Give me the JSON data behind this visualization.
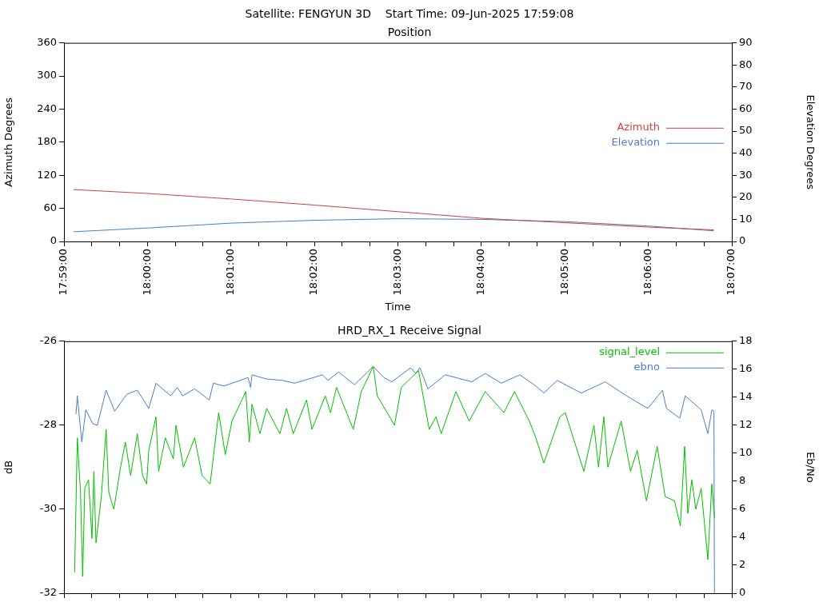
{
  "chart_data": [
    {
      "type": "line",
      "title": "Satellite: FENGYUN 3D    Start Time: 09-Jun-2025 17:59:08",
      "subtitle": "Position",
      "xlabel": "Time",
      "ylabel": "Azimuth Degrees",
      "y2label": "Elevation Degrees",
      "xlim": [
        17.98333,
        18.11667
      ],
      "xticks": [
        {
          "value": 17.98333,
          "label": "17:59:00"
        },
        {
          "value": 17.98889,
          "label": null
        },
        {
          "value": 17.99444,
          "label": null
        },
        {
          "value": 18.0,
          "label": "18:00:00"
        },
        {
          "value": 18.00556,
          "label": null
        },
        {
          "value": 18.01111,
          "label": null
        },
        {
          "value": 18.01667,
          "label": "18:01:00"
        },
        {
          "value": 18.02222,
          "label": null
        },
        {
          "value": 18.02778,
          "label": null
        },
        {
          "value": 18.03333,
          "label": "18:02:00"
        },
        {
          "value": 18.03889,
          "label": null
        },
        {
          "value": 18.04444,
          "label": null
        },
        {
          "value": 18.05,
          "label": "18:03:00"
        },
        {
          "value": 18.05556,
          "label": null
        },
        {
          "value": 18.06111,
          "label": null
        },
        {
          "value": 18.06667,
          "label": "18:04:00"
        },
        {
          "value": 18.07222,
          "label": null
        },
        {
          "value": 18.07778,
          "label": null
        },
        {
          "value": 18.08333,
          "label": "18:05:00"
        },
        {
          "value": 18.08889,
          "label": null
        },
        {
          "value": 18.09444,
          "label": null
        },
        {
          "value": 18.1,
          "label": "18:06:00"
        },
        {
          "value": 18.10556,
          "label": null
        },
        {
          "value": 18.11111,
          "label": null
        },
        {
          "value": 18.11667,
          "label": "18:07:00"
        }
      ],
      "ylim": [
        0,
        360
      ],
      "yticks": [
        0,
        60,
        120,
        180,
        240,
        300,
        360
      ],
      "y2lim": [
        0,
        90
      ],
      "y2ticks": [
        0,
        10,
        20,
        30,
        40,
        50,
        60,
        70,
        80,
        90
      ],
      "legend": "right",
      "series": [
        {
          "name": "Azimuth",
          "color": "#d04040",
          "x": [
            17.98528,
            18.0,
            18.01667,
            18.03333,
            18.05,
            18.06667,
            18.08333,
            18.1,
            18.11306
          ],
          "values": [
            94,
            87,
            77,
            66,
            54,
            42,
            34,
            26,
            21
          ]
        },
        {
          "name": "Elevation",
          "color": "#4a7ec8",
          "axis": "y2",
          "x": [
            17.98528,
            18.0,
            18.01667,
            18.03333,
            18.05,
            18.06667,
            18.08333,
            18.1,
            18.11306
          ],
          "values": [
            4.4,
            6.1,
            8.3,
            9.6,
            10.3,
            10.0,
            9.0,
            7.0,
            4.8
          ]
        }
      ]
    },
    {
      "type": "line",
      "title": "HRD_RX_1 Receive Signal",
      "ylabel": "dB",
      "y2label": "Eb/No",
      "xlim": [
        17.98333,
        18.11667
      ],
      "xticks": [
        {
          "value": 17.98333,
          "label": null
        },
        {
          "value": 17.98889,
          "label": null
        },
        {
          "value": 17.99444,
          "label": null
        },
        {
          "value": 18.0,
          "label": null
        },
        {
          "value": 18.00556,
          "label": null
        },
        {
          "value": 18.01111,
          "label": null
        },
        {
          "value": 18.01667,
          "label": null
        },
        {
          "value": 18.02222,
          "label": null
        },
        {
          "value": 18.02778,
          "label": null
        },
        {
          "value": 18.03333,
          "label": null
        },
        {
          "value": 18.03889,
          "label": null
        },
        {
          "value": 18.04444,
          "label": null
        },
        {
          "value": 18.05,
          "label": null
        },
        {
          "value": 18.05556,
          "label": null
        },
        {
          "value": 18.06111,
          "label": null
        },
        {
          "value": 18.06667,
          "label": null
        },
        {
          "value": 18.07222,
          "label": null
        },
        {
          "value": 18.07778,
          "label": null
        },
        {
          "value": 18.08333,
          "label": null
        },
        {
          "value": 18.08889,
          "label": null
        },
        {
          "value": 18.09444,
          "label": null
        },
        {
          "value": 18.1,
          "label": null
        },
        {
          "value": 18.10556,
          "label": null
        },
        {
          "value": 18.11111,
          "label": null
        },
        {
          "value": 18.11667,
          "label": null
        }
      ],
      "ylim": [
        -32,
        -26
      ],
      "yticks": [
        -32,
        -30,
        -28,
        -26
      ],
      "y2lim": [
        0,
        18
      ],
      "y2ticks": [
        0,
        2,
        4,
        6,
        8,
        10,
        12,
        14,
        16,
        18
      ],
      "tick_labels": "y",
      "legend": "top right",
      "series": [
        {
          "name": "signal_level",
          "color": "#00c000",
          "x": [
            17.98546,
            17.98599,
            17.98663,
            17.98706,
            17.98748,
            17.98823,
            17.98892,
            17.9893,
            17.98972,
            17.99079,
            17.99174,
            17.99228,
            17.99329,
            17.99462,
            17.99558,
            17.99664,
            17.99797,
            17.99903,
            17.99983,
            18.00026,
            18.0017,
            18.00223,
            18.00356,
            18.00516,
            18.00569,
            18.00718,
            18.00942,
            18.01091,
            18.01251,
            18.01421,
            18.01554,
            18.01687,
            18.01963,
            18.02033,
            18.02086,
            18.02246,
            18.02379,
            18.02645,
            18.02777,
            18.02911,
            18.03176,
            18.03284,
            18.0355,
            18.03655,
            18.03774,
            18.04109,
            18.04269,
            18.04508,
            18.04588,
            18.04933,
            18.05067,
            18.05412,
            18.05626,
            18.05759,
            18.05865,
            18.06158,
            18.06424,
            18.06744,
            18.07116,
            18.07328,
            18.07623,
            18.07755,
            18.07914,
            18.08234,
            18.08341,
            18.08606,
            18.08713,
            18.08915,
            18.09005,
            18.09112,
            18.09192,
            18.09458,
            18.09644,
            18.09778,
            18.09963,
            18.10176,
            18.10336,
            18.10522,
            18.1064,
            18.10725,
            18.10789,
            18.10868,
            18.10948,
            18.11055,
            18.11188,
            18.11268,
            18.1132
          ],
          "values": [
            -31.5,
            -28.3,
            -29.6,
            -31.6,
            -29.5,
            -29.3,
            -30.7,
            -29.1,
            -30.8,
            -29.7,
            -28.1,
            -29.6,
            -30.0,
            -29.0,
            -28.4,
            -29.2,
            -28.2,
            -29.2,
            -29.4,
            -28.6,
            -27.8,
            -29.1,
            -28.3,
            -28.8,
            -28.0,
            -29.0,
            -28.3,
            -29.2,
            -29.4,
            -27.7,
            -28.7,
            -27.9,
            -27.2,
            -28.4,
            -27.5,
            -28.2,
            -27.6,
            -28.2,
            -27.6,
            -28.2,
            -27.4,
            -28.1,
            -27.3,
            -27.7,
            -27.1,
            -28.1,
            -27.2,
            -26.6,
            -27.3,
            -28.0,
            -27.1,
            -26.7,
            -28.1,
            -27.8,
            -28.2,
            -27.2,
            -27.9,
            -27.2,
            -27.7,
            -27.2,
            -27.9,
            -28.3,
            -28.9,
            -27.8,
            -27.7,
            -28.7,
            -29.1,
            -28.0,
            -29.0,
            -27.8,
            -29.0,
            -27.9,
            -29.1,
            -28.6,
            -29.8,
            -28.5,
            -29.7,
            -29.8,
            -30.4,
            -28.5,
            -30.1,
            -29.3,
            -30.0,
            -29.5,
            -31.2,
            -29.4,
            -30.2
          ]
        },
        {
          "name": "ebno",
          "color": "#4a7ec8",
          "axis": "y2",
          "x": [
            17.98573,
            17.98599,
            17.98689,
            17.9877,
            17.98908,
            17.98999,
            17.99174,
            17.99345,
            17.99584,
            17.99797,
            18.00026,
            18.0017,
            18.00463,
            18.00596,
            18.00702,
            18.00942,
            18.01234,
            18.01314,
            18.01527,
            18.01767,
            18.02006,
            18.02059,
            18.02086,
            18.02379,
            18.02698,
            18.02938,
            18.03496,
            18.03603,
            18.03816,
            18.04135,
            18.04508,
            18.04721,
            18.0488,
            18.05253,
            18.05359,
            18.05439,
            18.05599,
            18.05945,
            18.06477,
            18.06744,
            18.07063,
            18.07435,
            18.07755,
            18.07914,
            18.08181,
            18.0866,
            18.0914,
            18.09564,
            18.0999,
            18.10282,
            18.10362,
            18.10629,
            18.10736,
            18.11055,
            18.11188,
            18.11268,
            18.1131,
            18.1132
          ],
          "values": [
            12.8,
            14.1,
            10.8,
            13.1,
            12.1,
            12.0,
            14.5,
            13.0,
            14.2,
            14.5,
            13.2,
            15.0,
            14.1,
            14.7,
            14.1,
            14.6,
            13.8,
            15.0,
            14.8,
            15.1,
            15.4,
            14.7,
            15.6,
            15.3,
            15.2,
            15.0,
            15.6,
            15.2,
            15.8,
            14.9,
            16.2,
            15.4,
            15.1,
            16.1,
            15.7,
            16.1,
            14.6,
            15.6,
            15.1,
            15.7,
            15.0,
            15.6,
            14.8,
            14.3,
            15.2,
            14.3,
            15.1,
            14.1,
            13.2,
            14.5,
            13.2,
            12.5,
            14.1,
            13.1,
            11.4,
            13.1,
            13.0,
            0
          ]
        }
      ]
    }
  ]
}
